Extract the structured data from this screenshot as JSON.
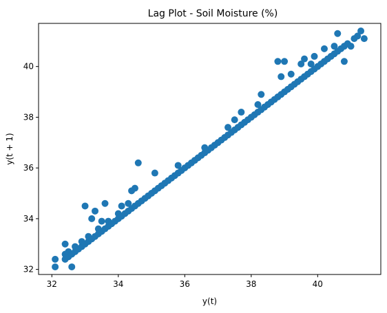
{
  "chart_data": {
    "type": "scatter",
    "title": "Lag Plot - Soil Moisture (%)",
    "xlabel": "y(t)",
    "ylabel": "y(t + 1)",
    "xlim": [
      31.6,
      41.9
    ],
    "ylim": [
      31.8,
      41.7
    ],
    "xticks": [
      32,
      34,
      36,
      38,
      40
    ],
    "yticks": [
      32,
      34,
      36,
      38,
      40
    ],
    "grid": false,
    "legend": "none",
    "marker_color": "#1f77b4",
    "series": [
      {
        "values_xy": [
          [
            32.1,
            32.1
          ],
          [
            32.1,
            32.4
          ],
          [
            32.4,
            32.4
          ],
          [
            32.4,
            32.6
          ],
          [
            32.4,
            33.0
          ],
          [
            32.5,
            32.5
          ],
          [
            32.5,
            32.7
          ],
          [
            32.6,
            32.1
          ],
          [
            32.6,
            32.6
          ],
          [
            32.7,
            32.7
          ],
          [
            32.7,
            32.9
          ],
          [
            32.8,
            32.8
          ],
          [
            32.9,
            32.9
          ],
          [
            32.9,
            33.1
          ],
          [
            33.0,
            33.0
          ],
          [
            33.0,
            34.5
          ],
          [
            33.1,
            33.1
          ],
          [
            33.1,
            33.3
          ],
          [
            33.2,
            33.2
          ],
          [
            33.2,
            34.0
          ],
          [
            33.3,
            33.3
          ],
          [
            33.3,
            34.3
          ],
          [
            33.4,
            33.4
          ],
          [
            33.4,
            33.6
          ],
          [
            33.5,
            33.5
          ],
          [
            33.5,
            33.9
          ],
          [
            33.6,
            33.6
          ],
          [
            33.6,
            34.6
          ],
          [
            33.7,
            33.7
          ],
          [
            33.7,
            33.9
          ],
          [
            33.8,
            33.8
          ],
          [
            33.9,
            33.9
          ],
          [
            34.0,
            34.0
          ],
          [
            34.0,
            34.2
          ],
          [
            34.1,
            34.1
          ],
          [
            34.1,
            34.5
          ],
          [
            34.2,
            34.2
          ],
          [
            34.3,
            34.3
          ],
          [
            34.3,
            34.6
          ],
          [
            34.4,
            34.4
          ],
          [
            34.4,
            35.1
          ],
          [
            34.5,
            34.5
          ],
          [
            34.5,
            35.2
          ],
          [
            34.6,
            34.6
          ],
          [
            34.6,
            36.2
          ],
          [
            34.7,
            34.7
          ],
          [
            34.8,
            34.8
          ],
          [
            34.9,
            34.9
          ],
          [
            35.0,
            35.0
          ],
          [
            35.1,
            35.1
          ],
          [
            35.1,
            35.8
          ],
          [
            35.2,
            35.2
          ],
          [
            35.3,
            35.3
          ],
          [
            35.4,
            35.4
          ],
          [
            35.5,
            35.5
          ],
          [
            35.6,
            35.6
          ],
          [
            35.7,
            35.7
          ],
          [
            35.8,
            35.8
          ],
          [
            35.8,
            36.1
          ],
          [
            35.9,
            35.9
          ],
          [
            36.0,
            36.0
          ],
          [
            36.1,
            36.1
          ],
          [
            36.2,
            36.2
          ],
          [
            36.3,
            36.3
          ],
          [
            36.4,
            36.4
          ],
          [
            36.5,
            36.5
          ],
          [
            36.6,
            36.6
          ],
          [
            36.6,
            36.8
          ],
          [
            36.7,
            36.7
          ],
          [
            36.8,
            36.8
          ],
          [
            36.9,
            36.9
          ],
          [
            37.0,
            37.0
          ],
          [
            37.1,
            37.1
          ],
          [
            37.2,
            37.2
          ],
          [
            37.3,
            37.3
          ],
          [
            37.3,
            37.6
          ],
          [
            37.4,
            37.4
          ],
          [
            37.5,
            37.5
          ],
          [
            37.5,
            37.9
          ],
          [
            37.6,
            37.6
          ],
          [
            37.7,
            37.7
          ],
          [
            37.7,
            38.2
          ],
          [
            37.8,
            37.8
          ],
          [
            37.9,
            37.9
          ],
          [
            38.0,
            38.0
          ],
          [
            38.1,
            38.1
          ],
          [
            38.2,
            38.2
          ],
          [
            38.2,
            38.5
          ],
          [
            38.3,
            38.3
          ],
          [
            38.3,
            38.9
          ],
          [
            38.4,
            38.4
          ],
          [
            38.5,
            38.5
          ],
          [
            38.6,
            38.6
          ],
          [
            38.7,
            38.7
          ],
          [
            38.8,
            38.8
          ],
          [
            38.8,
            40.2
          ],
          [
            38.9,
            38.9
          ],
          [
            38.9,
            39.6
          ],
          [
            39.0,
            39.0
          ],
          [
            39.0,
            40.2
          ],
          [
            39.1,
            39.1
          ],
          [
            39.2,
            39.2
          ],
          [
            39.2,
            39.7
          ],
          [
            39.3,
            39.3
          ],
          [
            39.4,
            39.4
          ],
          [
            39.5,
            39.5
          ],
          [
            39.5,
            40.1
          ],
          [
            39.6,
            39.6
          ],
          [
            39.6,
            40.3
          ],
          [
            39.7,
            39.7
          ],
          [
            39.8,
            39.8
          ],
          [
            39.8,
            40.1
          ],
          [
            39.9,
            39.9
          ],
          [
            39.9,
            40.4
          ],
          [
            40.0,
            40.0
          ],
          [
            40.1,
            40.1
          ],
          [
            40.2,
            40.2
          ],
          [
            40.2,
            40.7
          ],
          [
            40.3,
            40.3
          ],
          [
            40.4,
            40.4
          ],
          [
            40.5,
            40.5
          ],
          [
            40.5,
            40.8
          ],
          [
            40.6,
            40.6
          ],
          [
            40.6,
            41.3
          ],
          [
            40.7,
            40.7
          ],
          [
            40.8,
            40.2
          ],
          [
            40.8,
            40.8
          ],
          [
            40.9,
            40.9
          ],
          [
            41.0,
            40.8
          ],
          [
            41.1,
            41.1
          ],
          [
            41.2,
            41.2
          ],
          [
            41.3,
            41.4
          ],
          [
            41.4,
            41.1
          ]
        ]
      }
    ]
  }
}
